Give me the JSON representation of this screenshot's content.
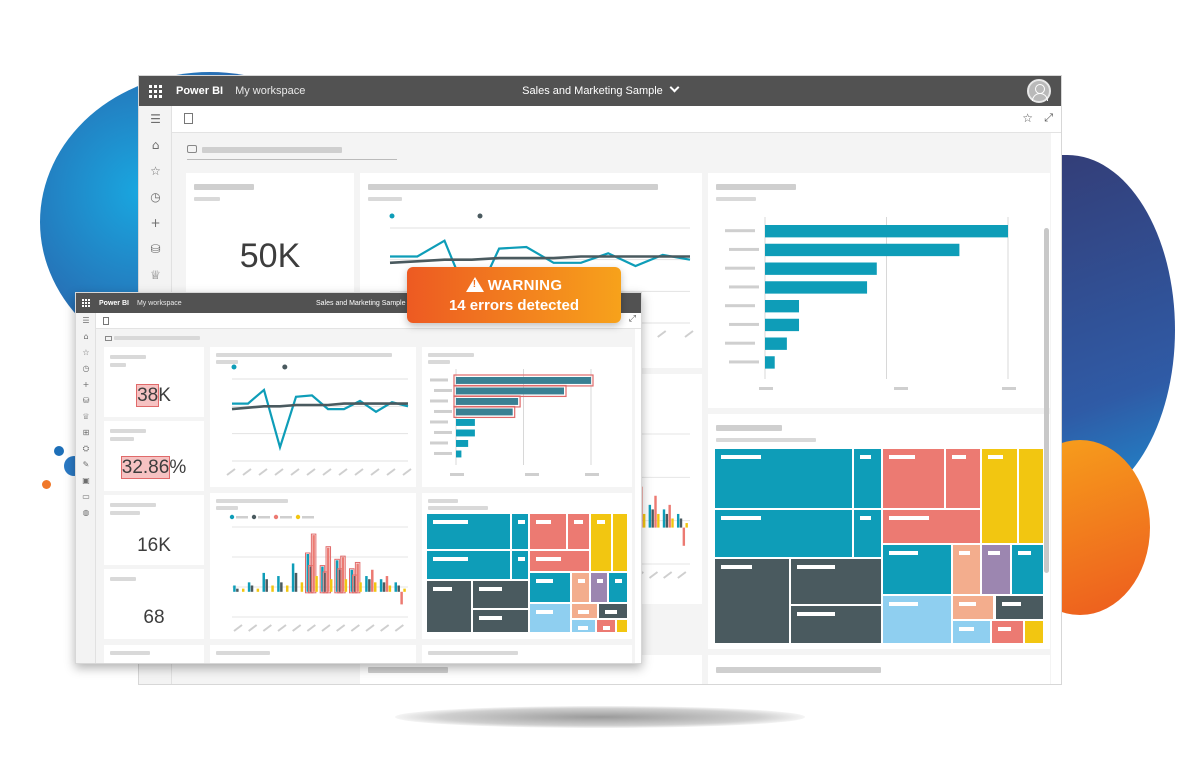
{
  "colors": {
    "teal": "#0e9db8",
    "dark_slate": "#4a5a5f",
    "salmon": "#ec7a72",
    "yellow": "#f2c611",
    "light_blue": "#8fcff0",
    "peach": "#f3ad8d",
    "purple": "#9c86b0",
    "warning_start": "#ed5a22",
    "warning_end": "#f7a21b",
    "topbar": "#525252"
  },
  "main_window": {
    "brand": "Power BI",
    "workspace": "My workspace",
    "report_title": "Sales and Marketing Sample",
    "kpi_value": "50K",
    "nav_icons": [
      "hamburger-icon",
      "home-icon",
      "star-icon",
      "clock-icon",
      "plus-icon",
      "database-icon",
      "trophy-icon"
    ]
  },
  "warning": {
    "title": "WARNING",
    "message": "14 errors detected"
  },
  "small_window": {
    "brand": "Power BI",
    "workspace": "My workspace",
    "report_title": "Sales and Marketing Sample",
    "kpi_1": "38",
    "kpi_1_suffix": "K",
    "kpi_2": "32.86",
    "kpi_2_suffix": "%",
    "kpi_3": "16K",
    "kpi_4": "68"
  },
  "chart_data": [
    {
      "type": "line",
      "x": [
        1,
        2,
        3,
        4,
        5,
        6,
        7,
        8,
        9,
        10,
        11,
        12
      ],
      "series": [
        {
          "values": [
            42,
            42,
            52,
            10,
            47,
            48,
            38,
            38,
            44,
            36,
            43,
            40
          ]
        },
        {
          "values": [
            38,
            39,
            40,
            40,
            41,
            41,
            41,
            42,
            42,
            42,
            42,
            42
          ]
        }
      ],
      "ylim": [
        0,
        60
      ]
    },
    {
      "type": "bar",
      "orientation": "horizontal",
      "values": [
        100,
        80,
        46,
        42,
        14,
        14,
        9,
        4
      ]
    },
    {
      "type": "bar",
      "series": [
        {
          "values": [
            2,
            3,
            6,
            5,
            9,
            12,
            8,
            10,
            7,
            5,
            4,
            3
          ]
        },
        {
          "values": [
            1,
            2,
            4,
            3,
            6,
            8,
            6,
            7,
            5,
            4,
            3,
            2
          ]
        },
        {
          "values": [
            0,
            0,
            0,
            0,
            0,
            18,
            14,
            11,
            9,
            7,
            5,
            -4
          ]
        },
        {
          "values": [
            1,
            1,
            2,
            2,
            3,
            5,
            4,
            4,
            3,
            3,
            2,
            1
          ]
        }
      ]
    },
    {
      "type": "heatmap",
      "kind": "treemap",
      "values": [
        36,
        14,
        11,
        10,
        8,
        6,
        5,
        4,
        3,
        3
      ]
    }
  ]
}
